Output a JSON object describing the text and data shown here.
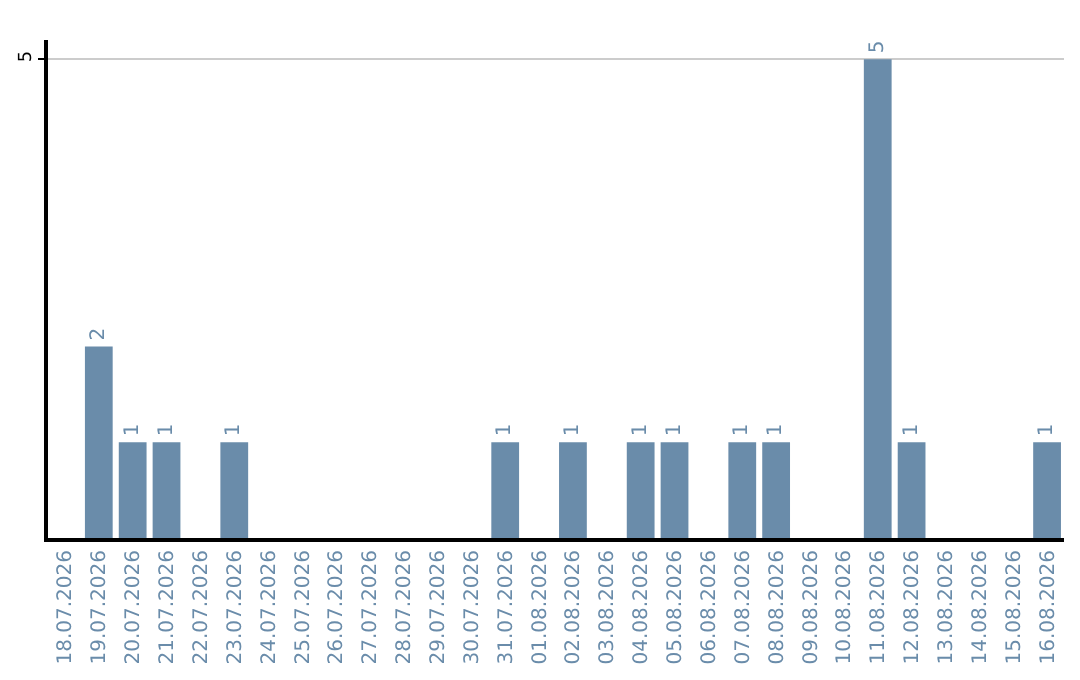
{
  "chart_data": {
    "type": "bar",
    "categories": [
      "18.07.2026",
      "19.07.2026",
      "20.07.2026",
      "21.07.2026",
      "22.07.2026",
      "23.07.2026",
      "24.07.2026",
      "25.07.2026",
      "26.07.2026",
      "27.07.2026",
      "28.07.2026",
      "29.07.2026",
      "30.07.2026",
      "31.07.2026",
      "01.08.2026",
      "02.08.2026",
      "03.08.2026",
      "04.08.2026",
      "05.08.2026",
      "06.08.2026",
      "07.08.2026",
      "08.08.2026",
      "09.08.2026",
      "10.08.2026",
      "11.08.2026",
      "12.08.2026",
      "13.08.2026",
      "14.08.2026",
      "15.08.2026",
      "16.08.2026"
    ],
    "values": [
      0,
      2,
      1,
      1,
      0,
      1,
      0,
      0,
      0,
      0,
      0,
      0,
      0,
      1,
      0,
      1,
      0,
      1,
      1,
      0,
      1,
      1,
      0,
      0,
      5,
      1,
      0,
      0,
      0,
      1
    ],
    "value_labels": [
      null,
      "2",
      "1",
      "1",
      null,
      "1",
      null,
      null,
      null,
      null,
      null,
      null,
      null,
      "1",
      null,
      "1",
      null,
      "1",
      "1",
      null,
      "1",
      "1",
      null,
      null,
      "5",
      "1",
      null,
      null,
      null,
      "1"
    ],
    "color": "#6a8caa",
    "ylim": [
      0,
      5.2
    ],
    "yticks": [
      5
    ],
    "grid": "y",
    "legend": false
  }
}
